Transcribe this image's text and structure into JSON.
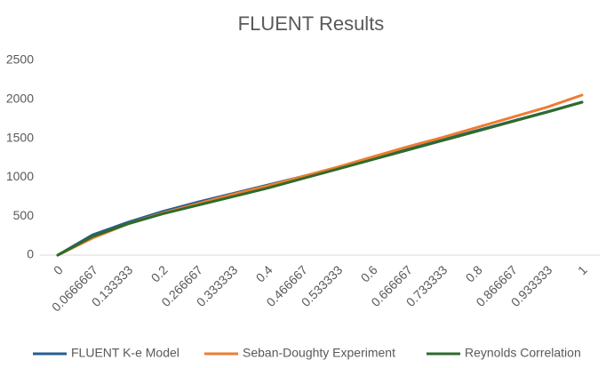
{
  "chart_data": {
    "type": "line",
    "title": "FLUENT Results",
    "categories": [
      "0",
      "0.0666667",
      "0.133333",
      "0.2",
      "0.266667",
      "0.333333",
      "0.4",
      "0.466667",
      "0.533333",
      "0.6",
      "0.666667",
      "0.733333",
      "0.8",
      "0.866667",
      "0.933333",
      "1"
    ],
    "series": [
      {
        "name": "FLUENT K-e Model",
        "color": "#255e91",
        "values": [
          0,
          260,
          420,
          560,
          680,
          790,
          900,
          1010,
          1120,
          1240,
          1360,
          1480,
          1600,
          1720,
          1840,
          1965
        ]
      },
      {
        "name": "Seban-Doughty Experiment",
        "color": "#ed7d31",
        "values": [
          0,
          220,
          400,
          540,
          660,
          780,
          890,
          1010,
          1130,
          1260,
          1390,
          1510,
          1640,
          1770,
          1900,
          2055
        ]
      },
      {
        "name": "Reynolds Correlation",
        "color": "#2e6b2a",
        "values": [
          0,
          240,
          400,
          530,
          640,
          750,
          860,
          982,
          1104,
          1226,
          1348,
          1470,
          1592,
          1714,
          1836,
          1963
        ]
      }
    ],
    "ylim": [
      0,
      2500
    ],
    "yticks": [
      0,
      500,
      1000,
      1500,
      2000,
      2500
    ],
    "grid": false,
    "legend": "bottom"
  }
}
